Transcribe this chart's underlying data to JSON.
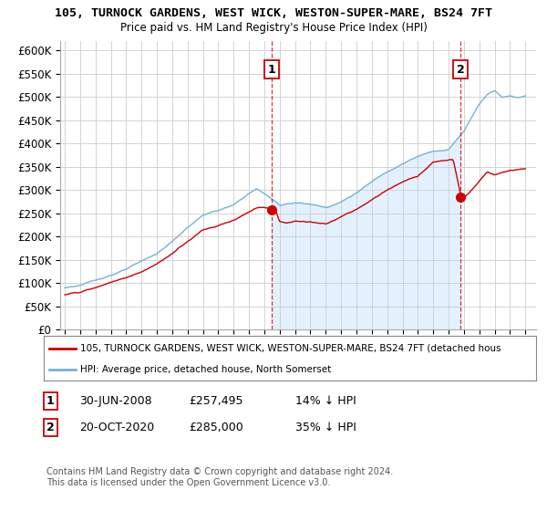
{
  "title": "105, TURNOCK GARDENS, WEST WICK, WESTON-SUPER-MARE, BS24 7FT",
  "subtitle": "Price paid vs. HM Land Registry's House Price Index (HPI)",
  "ylim": [
    0,
    620000
  ],
  "yticks": [
    0,
    50000,
    100000,
    150000,
    200000,
    250000,
    300000,
    350000,
    400000,
    450000,
    500000,
    550000,
    600000
  ],
  "ytick_labels": [
    "£0",
    "£50K",
    "£100K",
    "£150K",
    "£200K",
    "£250K",
    "£300K",
    "£350K",
    "£400K",
    "£450K",
    "£500K",
    "£550K",
    "£600K"
  ],
  "hpi_color": "#7ab0d4",
  "hpi_fill_color": "#ddeeff",
  "price_color": "#cc0000",
  "sale1_price": 257495,
  "sale2_price": 285000,
  "sale1_year": 2008.46,
  "sale2_year": 2020.79,
  "sale1_date": "30-JUN-2008",
  "sale2_date": "20-OCT-2020",
  "sale1_pct": "14% ↓ HPI",
  "sale2_pct": "35% ↓ HPI",
  "legend_property": "105, TURNOCK GARDENS, WEST WICK, WESTON-SUPER-MARE, BS24 7FT (detached hous",
  "legend_hpi": "HPI: Average price, detached house, North Somerset",
  "footnote": "Contains HM Land Registry data © Crown copyright and database right 2024.\nThis data is licensed under the Open Government Licence v3.0."
}
